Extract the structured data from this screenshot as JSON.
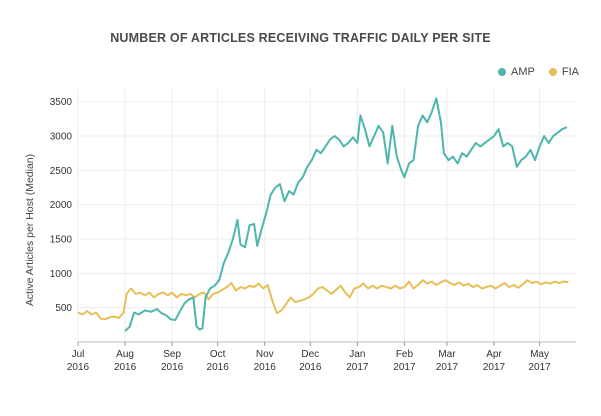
{
  "chart_data": {
    "type": "line",
    "title": "NUMBER OF ARTICLES RECEIVING TRAFFIC DAILY PER SITE",
    "xlabel": "",
    "ylabel": "Active Articles per Host (Median)",
    "xlim": [
      "2016-07-01",
      "2017-05-25"
    ],
    "ylim": [
      0,
      3700
    ],
    "y_ticks": [
      500,
      1000,
      1500,
      2000,
      2500,
      3000,
      3500
    ],
    "x_ticks": [
      {
        "date": "2016-07-01",
        "month": "Jul",
        "year": "2016"
      },
      {
        "date": "2016-08-01",
        "month": "Aug",
        "year": "2016"
      },
      {
        "date": "2016-09-01",
        "month": "Sep",
        "year": "2016"
      },
      {
        "date": "2016-10-01",
        "month": "Oct",
        "year": "2016"
      },
      {
        "date": "2016-11-01",
        "month": "Nov",
        "year": "2016"
      },
      {
        "date": "2016-12-01",
        "month": "Dec",
        "year": "2016"
      },
      {
        "date": "2017-01-01",
        "month": "Jan",
        "year": "2017"
      },
      {
        "date": "2017-02-01",
        "month": "Feb",
        "year": "2017"
      },
      {
        "date": "2017-03-01",
        "month": "Mar",
        "year": "2017"
      },
      {
        "date": "2017-04-01",
        "month": "Apr",
        "year": "2017"
      },
      {
        "date": "2017-05-01",
        "month": "May",
        "year": "2017"
      }
    ],
    "grid": true,
    "legend_position": "top-right",
    "series": [
      {
        "name": "AMP",
        "color": "#4db6ac",
        "points": [
          [
            "2016-08-01",
            160
          ],
          [
            "2016-08-04",
            220
          ],
          [
            "2016-08-07",
            430
          ],
          [
            "2016-08-10",
            400
          ],
          [
            "2016-08-14",
            460
          ],
          [
            "2016-08-18",
            440
          ],
          [
            "2016-08-22",
            480
          ],
          [
            "2016-08-25",
            420
          ],
          [
            "2016-08-28",
            390
          ],
          [
            "2016-08-31",
            330
          ],
          [
            "2016-09-03",
            320
          ],
          [
            "2016-09-06",
            440
          ],
          [
            "2016-09-09",
            560
          ],
          [
            "2016-09-12",
            620
          ],
          [
            "2016-09-15",
            650
          ],
          [
            "2016-09-17",
            230
          ],
          [
            "2016-09-19",
            180
          ],
          [
            "2016-09-21",
            200
          ],
          [
            "2016-09-23",
            650
          ],
          [
            "2016-09-26",
            780
          ],
          [
            "2016-09-29",
            820
          ],
          [
            "2016-10-02",
            900
          ],
          [
            "2016-10-05",
            1150
          ],
          [
            "2016-10-08",
            1300
          ],
          [
            "2016-10-11",
            1500
          ],
          [
            "2016-10-14",
            1780
          ],
          [
            "2016-10-16",
            1420
          ],
          [
            "2016-10-19",
            1380
          ],
          [
            "2016-10-22",
            1700
          ],
          [
            "2016-10-25",
            1720
          ],
          [
            "2016-10-27",
            1400
          ],
          [
            "2016-10-30",
            1650
          ],
          [
            "2016-11-02",
            1880
          ],
          [
            "2016-11-05",
            2150
          ],
          [
            "2016-11-08",
            2250
          ],
          [
            "2016-11-11",
            2300
          ],
          [
            "2016-11-14",
            2050
          ],
          [
            "2016-11-17",
            2200
          ],
          [
            "2016-11-20",
            2150
          ],
          [
            "2016-11-23",
            2320
          ],
          [
            "2016-11-26",
            2400
          ],
          [
            "2016-11-29",
            2550
          ],
          [
            "2016-12-02",
            2650
          ],
          [
            "2016-12-05",
            2800
          ],
          [
            "2016-12-08",
            2750
          ],
          [
            "2016-12-11",
            2850
          ],
          [
            "2016-12-14",
            2950
          ],
          [
            "2016-12-17",
            3000
          ],
          [
            "2016-12-20",
            2950
          ],
          [
            "2016-12-23",
            2850
          ],
          [
            "2016-12-26",
            2900
          ],
          [
            "2016-12-29",
            2980
          ],
          [
            "2017-01-01",
            2900
          ],
          [
            "2017-01-03",
            3300
          ],
          [
            "2017-01-06",
            3100
          ],
          [
            "2017-01-09",
            2850
          ],
          [
            "2017-01-12",
            3000
          ],
          [
            "2017-01-15",
            3150
          ],
          [
            "2017-01-18",
            3050
          ],
          [
            "2017-01-21",
            2600
          ],
          [
            "2017-01-24",
            3150
          ],
          [
            "2017-01-27",
            2700
          ],
          [
            "2017-01-30",
            2500
          ],
          [
            "2017-02-01",
            2400
          ],
          [
            "2017-02-04",
            2600
          ],
          [
            "2017-02-07",
            2650
          ],
          [
            "2017-02-10",
            3150
          ],
          [
            "2017-02-13",
            3300
          ],
          [
            "2017-02-16",
            3200
          ],
          [
            "2017-02-19",
            3350
          ],
          [
            "2017-02-22",
            3550
          ],
          [
            "2017-02-25",
            3200
          ],
          [
            "2017-02-27",
            2750
          ],
          [
            "2017-03-02",
            2650
          ],
          [
            "2017-03-05",
            2700
          ],
          [
            "2017-03-08",
            2600
          ],
          [
            "2017-03-11",
            2750
          ],
          [
            "2017-03-14",
            2700
          ],
          [
            "2017-03-17",
            2800
          ],
          [
            "2017-03-20",
            2900
          ],
          [
            "2017-03-23",
            2850
          ],
          [
            "2017-03-26",
            2900
          ],
          [
            "2017-03-29",
            2950
          ],
          [
            "2017-04-01",
            3000
          ],
          [
            "2017-04-04",
            3100
          ],
          [
            "2017-04-07",
            2850
          ],
          [
            "2017-04-10",
            2900
          ],
          [
            "2017-04-13",
            2850
          ],
          [
            "2017-04-16",
            2550
          ],
          [
            "2017-04-19",
            2650
          ],
          [
            "2017-04-22",
            2700
          ],
          [
            "2017-04-25",
            2800
          ],
          [
            "2017-04-28",
            2650
          ],
          [
            "2017-05-01",
            2850
          ],
          [
            "2017-05-04",
            3000
          ],
          [
            "2017-05-07",
            2900
          ],
          [
            "2017-05-10",
            3000
          ],
          [
            "2017-05-13",
            3050
          ],
          [
            "2017-05-16",
            3100
          ],
          [
            "2017-05-19",
            3130
          ]
        ]
      },
      {
        "name": "FIA",
        "color": "#e8bf57",
        "points": [
          [
            "2016-07-01",
            430
          ],
          [
            "2016-07-04",
            400
          ],
          [
            "2016-07-07",
            450
          ],
          [
            "2016-07-10",
            400
          ],
          [
            "2016-07-13",
            430
          ],
          [
            "2016-07-16",
            340
          ],
          [
            "2016-07-19",
            330
          ],
          [
            "2016-07-22",
            360
          ],
          [
            "2016-07-25",
            370
          ],
          [
            "2016-07-28",
            350
          ],
          [
            "2016-07-31",
            430
          ],
          [
            "2016-08-02",
            700
          ],
          [
            "2016-08-05",
            780
          ],
          [
            "2016-08-08",
            700
          ],
          [
            "2016-08-11",
            720
          ],
          [
            "2016-08-14",
            680
          ],
          [
            "2016-08-17",
            720
          ],
          [
            "2016-08-20",
            650
          ],
          [
            "2016-08-23",
            700
          ],
          [
            "2016-08-26",
            720
          ],
          [
            "2016-08-29",
            680
          ],
          [
            "2016-09-01",
            720
          ],
          [
            "2016-09-04",
            650
          ],
          [
            "2016-09-07",
            700
          ],
          [
            "2016-09-10",
            680
          ],
          [
            "2016-09-13",
            700
          ],
          [
            "2016-09-16",
            650
          ],
          [
            "2016-09-19",
            700
          ],
          [
            "2016-09-22",
            720
          ],
          [
            "2016-09-25",
            620
          ],
          [
            "2016-09-28",
            700
          ],
          [
            "2016-10-01",
            720
          ],
          [
            "2016-10-04",
            760
          ],
          [
            "2016-10-07",
            800
          ],
          [
            "2016-10-10",
            860
          ],
          [
            "2016-10-13",
            750
          ],
          [
            "2016-10-16",
            800
          ],
          [
            "2016-10-19",
            780
          ],
          [
            "2016-10-22",
            820
          ],
          [
            "2016-10-25",
            800
          ],
          [
            "2016-10-28",
            850
          ],
          [
            "2016-10-31",
            780
          ],
          [
            "2016-11-03",
            830
          ],
          [
            "2016-11-06",
            600
          ],
          [
            "2016-11-09",
            420
          ],
          [
            "2016-11-12",
            460
          ],
          [
            "2016-11-15",
            550
          ],
          [
            "2016-11-18",
            650
          ],
          [
            "2016-11-21",
            580
          ],
          [
            "2016-11-24",
            600
          ],
          [
            "2016-11-27",
            620
          ],
          [
            "2016-11-30",
            650
          ],
          [
            "2016-12-03",
            700
          ],
          [
            "2016-12-06",
            780
          ],
          [
            "2016-12-09",
            800
          ],
          [
            "2016-12-12",
            750
          ],
          [
            "2016-12-15",
            700
          ],
          [
            "2016-12-18",
            760
          ],
          [
            "2016-12-21",
            820
          ],
          [
            "2016-12-24",
            720
          ],
          [
            "2016-12-27",
            650
          ],
          [
            "2016-12-30",
            780
          ],
          [
            "2017-01-02",
            800
          ],
          [
            "2017-01-05",
            850
          ],
          [
            "2017-01-08",
            780
          ],
          [
            "2017-01-11",
            820
          ],
          [
            "2017-01-14",
            780
          ],
          [
            "2017-01-17",
            820
          ],
          [
            "2017-01-20",
            800
          ],
          [
            "2017-01-23",
            780
          ],
          [
            "2017-01-26",
            820
          ],
          [
            "2017-01-29",
            780
          ],
          [
            "2017-02-01",
            800
          ],
          [
            "2017-02-04",
            880
          ],
          [
            "2017-02-07",
            780
          ],
          [
            "2017-02-10",
            830
          ],
          [
            "2017-02-13",
            900
          ],
          [
            "2017-02-16",
            850
          ],
          [
            "2017-02-19",
            880
          ],
          [
            "2017-02-22",
            830
          ],
          [
            "2017-02-25",
            870
          ],
          [
            "2017-02-28",
            900
          ],
          [
            "2017-03-03",
            860
          ],
          [
            "2017-03-06",
            830
          ],
          [
            "2017-03-09",
            870
          ],
          [
            "2017-03-12",
            820
          ],
          [
            "2017-03-15",
            850
          ],
          [
            "2017-03-18",
            800
          ],
          [
            "2017-03-21",
            830
          ],
          [
            "2017-03-24",
            780
          ],
          [
            "2017-03-27",
            800
          ],
          [
            "2017-03-30",
            820
          ],
          [
            "2017-04-02",
            780
          ],
          [
            "2017-04-05",
            820
          ],
          [
            "2017-04-08",
            860
          ],
          [
            "2017-04-11",
            800
          ],
          [
            "2017-04-14",
            830
          ],
          [
            "2017-04-17",
            790
          ],
          [
            "2017-04-20",
            840
          ],
          [
            "2017-04-23",
            900
          ],
          [
            "2017-04-26",
            860
          ],
          [
            "2017-04-29",
            880
          ],
          [
            "2017-05-02",
            840
          ],
          [
            "2017-05-05",
            870
          ],
          [
            "2017-05-08",
            850
          ],
          [
            "2017-05-11",
            880
          ],
          [
            "2017-05-14",
            860
          ],
          [
            "2017-05-17",
            880
          ],
          [
            "2017-05-20",
            870
          ]
        ]
      }
    ]
  }
}
